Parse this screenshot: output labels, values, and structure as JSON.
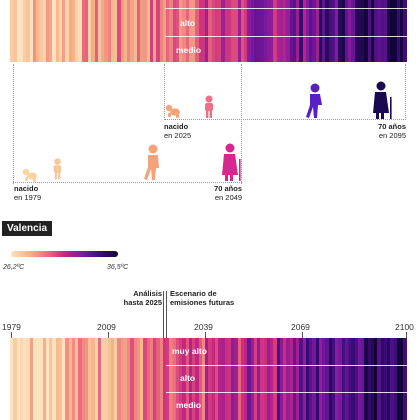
{
  "top_scenarios": [
    "alto",
    "medio"
  ],
  "timeline": {
    "person1_born_label": "nacido",
    "person1_born_year": "en 1979",
    "person1_70_label": "70 años",
    "person1_70_year": "en 2049",
    "person2_born_label": "nacido",
    "person2_born_year": "en 2025",
    "person2_70_label": "70 años",
    "person2_70_year": "en 2095"
  },
  "city": {
    "name": "Valencia"
  },
  "legend": {
    "min": "26,2ºC",
    "max": "36,5ºC"
  },
  "annotations": {
    "analysis": "Análisis\nhasta 2025",
    "scenario": "Escenario de\nemisiones futuras"
  },
  "axis_years": [
    "1979",
    "2009",
    "2039",
    "2069",
    "2100"
  ],
  "bottom_scenarios": [
    "muy alto",
    "alto",
    "medio"
  ],
  "colors": {
    "cool": "#fbd3a4",
    "mid": "#e24a7a",
    "hot": "#2a0a5c",
    "figure_orange": "#f5a47a",
    "figure_pink": "#d7268f",
    "figure_purple": "#5a1fc2",
    "figure_dark": "#1a0850"
  },
  "icons": [
    "baby-icon",
    "toddler-icon",
    "child-icon",
    "adult-icon",
    "elder-icon"
  ]
}
